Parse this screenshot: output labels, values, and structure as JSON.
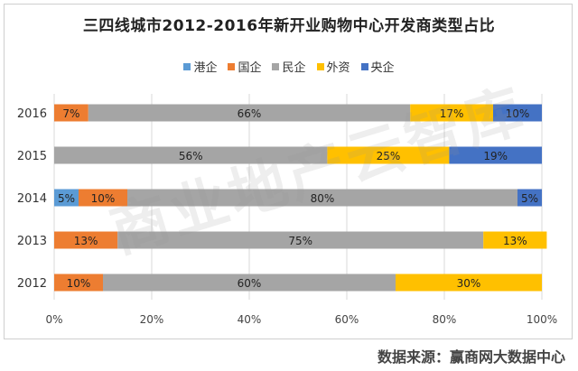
{
  "chart_data": {
    "type": "bar",
    "orientation": "horizontal",
    "stacked": true,
    "title": "三四线城市2012-2016年新开业购物中心开发商类型占比",
    "categories": [
      "2016",
      "2015",
      "2014",
      "2013",
      "2012"
    ],
    "series": [
      {
        "name": "港企",
        "color": "#5B9BD5",
        "values": [
          0,
          0,
          5,
          0,
          0
        ]
      },
      {
        "name": "国企",
        "color": "#ED7D31",
        "values": [
          7,
          0,
          10,
          13,
          10
        ]
      },
      {
        "name": "民企",
        "color": "#A5A5A5",
        "values": [
          66,
          56,
          80,
          75,
          60
        ]
      },
      {
        "name": "外资",
        "color": "#FFC000",
        "values": [
          17,
          25,
          0,
          13,
          30
        ]
      },
      {
        "name": "央企",
        "color": "#4472C4",
        "values": [
          10,
          19,
          5,
          0,
          0
        ]
      }
    ],
    "value_format": "{v}%",
    "xlim": [
      0,
      100
    ],
    "xticks": [
      "0%",
      "20%",
      "40%",
      "60%",
      "80%",
      "100%"
    ],
    "grid": true,
    "legend_position": "top"
  },
  "watermark": "商业地产云智库",
  "source_note": "数据来源：赢商网大数据中心"
}
